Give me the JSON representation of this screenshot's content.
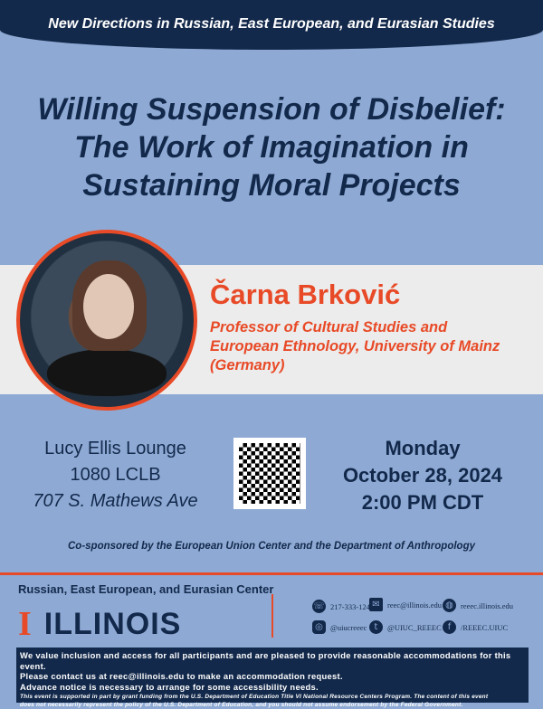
{
  "series": "New Directions in Russian, East European, and Eurasian Studies",
  "title": [
    "Willing Suspension of Disbelief:",
    "The Work of Imagination in",
    "Sustaining Moral Projects"
  ],
  "speaker": {
    "name": "Čarna Brković",
    "role": [
      "Professor of Cultural Studies and",
      "European Ethnology, University of Mainz",
      "(Germany)"
    ]
  },
  "venue": [
    "Lucy Ellis Lounge",
    "1080 LCLB",
    "707 S. Mathews Ave"
  ],
  "date": [
    "Monday",
    "October 28, 2024",
    "2:00 PM CDT"
  ],
  "cosponsor": "Co-sponsored by the European Union Center and the Department of Anthropology",
  "footer": {
    "center": "Russian, East European, and Eurasian Center",
    "logo_text": "ILLINOIS",
    "contacts": [
      {
        "icon": "phone-icon",
        "text": "217-333-1244"
      },
      {
        "icon": "mail-icon",
        "text": "reec@illinois.edu"
      },
      {
        "icon": "globe-icon",
        "text": "reeec.illinois.edu"
      },
      {
        "icon": "instagram-icon",
        "text": "@uiucreeec"
      },
      {
        "icon": "twitter-icon",
        "text": "@UIUC_REEEC"
      },
      {
        "icon": "facebook-icon",
        "text": "/REEEC.UIUC"
      }
    ],
    "access": [
      "We value inclusion and access for all participants and are pleased to provide reasonable accommodations for this event.",
      "Please contact us at reec@illinois.edu to make an accommodation request.",
      "Advance notice is necessary to arrange for some accessibility needs."
    ],
    "disclaimer": [
      "This event is supported in part by grant funding from the U.S. Department of Education Title VI National Resource Centers Program. The content of this event",
      "does not necessarily represent the policy of the U.S. Department of Education, and you should not assume endorsement by the Federal Government."
    ]
  },
  "colors": {
    "navy": "#13294b",
    "orange": "#e84a27",
    "background": "#8eaad4"
  }
}
